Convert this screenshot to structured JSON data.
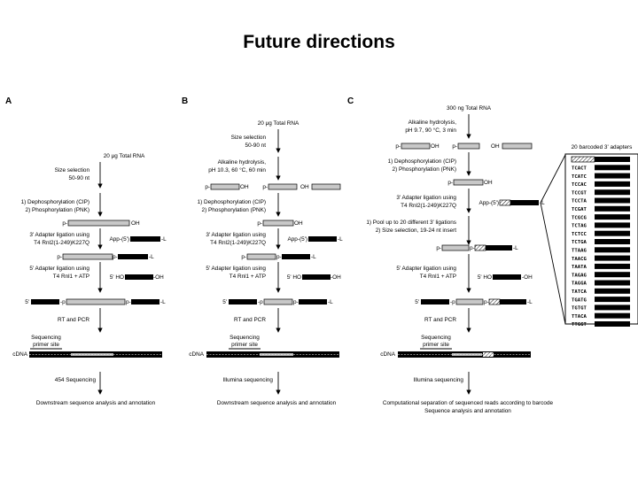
{
  "title": "Future directions",
  "panels": {
    "A": {
      "letter": "A",
      "input": "20 μg Total RNA",
      "size_sel": [
        "Size selection",
        "50-90 nt"
      ],
      "dephos": [
        "1) Dephosphorylation (CIP)",
        "2) Phosphorylation (PNK)"
      ],
      "adapter3": [
        "3' Adapter ligation using",
        "T4 Rnl2(1-249)K227Q"
      ],
      "adapter5": [
        "5' Adapter ligation using",
        "T4 Rnl1 + ATP"
      ],
      "rtpcr": "RT and PCR",
      "primer": [
        "Sequencing",
        "primer site"
      ],
      "cdna": "cDNA",
      "seq": "454 Sequencing",
      "analysis": [
        "Downstream sequence analysis and annotation"
      ]
    },
    "B": {
      "letter": "B",
      "input": "20 μg Total RNA",
      "size_sel": [
        "Size selection",
        "50-90 nt"
      ],
      "hydrolysis": [
        "Alkaline hydrolysis,",
        "pH 10.3, 60 °C, 60 min"
      ],
      "dephos": [
        "1) Dephosphorylation (CIP)",
        "2) Phosphorylation (PNK)"
      ],
      "adapter3": [
        "3' Adapter ligation using",
        "T4 Rnl2(1-249)K227Q"
      ],
      "adapter5": [
        "5' Adapter ligation using",
        "T4 Rnl1 + ATP"
      ],
      "rtpcr": "RT and PCR",
      "primer": [
        "Sequencing",
        "primer site"
      ],
      "cdna": "cDNA",
      "seq": "Illumina sequencing",
      "analysis": [
        "Downstream sequence analysis and annotation"
      ]
    },
    "C": {
      "letter": "C",
      "input": "300 ng Total RNA",
      "hydrolysis": [
        "Alkaline hydrolysis,",
        "pH 9.7, 90 °C, 3 min"
      ],
      "dephos": [
        "1) Dephosphorylation (CIP)",
        "2) Phosphorylation (PNK)"
      ],
      "adapter3": [
        "3' Adapter ligation using",
        "T4 Rnl2(1-249)K227Q"
      ],
      "pool": [
        "1) Pool up to 20 different 3' ligations",
        "2) Size selection, 19-24 nt insert"
      ],
      "adapter5": [
        "5' Adapter ligation using",
        "T4 Rnl1 + ATP"
      ],
      "rtpcr": "RT and PCR",
      "primer": [
        "Sequencing",
        "primer site"
      ],
      "cdna": "cDNA",
      "seq": "Illumina sequencing",
      "analysis": [
        "Computational separation of sequenced reads according to barcode",
        "Sequence analysis and annotation"
      ]
    }
  },
  "labels": {
    "p": "p",
    "oh": "OH",
    "l": "L",
    "app": "App-(5')",
    "ho5": "5' HO",
    "p5": "5'",
    "p_dash": "p-",
    "dash_oh": "-OH",
    "dash_l": "-L",
    "dash_p": "-p"
  },
  "barcodes": {
    "title": "20 barcoded 3' adapters",
    "sequences": [
      "TCACT",
      "TCATC",
      "TCCAC",
      "TCCGT",
      "TCCTA",
      "TCGAT",
      "TCGCG",
      "TCTAG",
      "TCTCC",
      "TCTGA",
      "TTAAG",
      "TAACG",
      "TAATA",
      "TAGAG",
      "TAGGA",
      "TATCA",
      "TGATG",
      "TGTGT",
      "TTACA",
      "TTGGT"
    ]
  }
}
